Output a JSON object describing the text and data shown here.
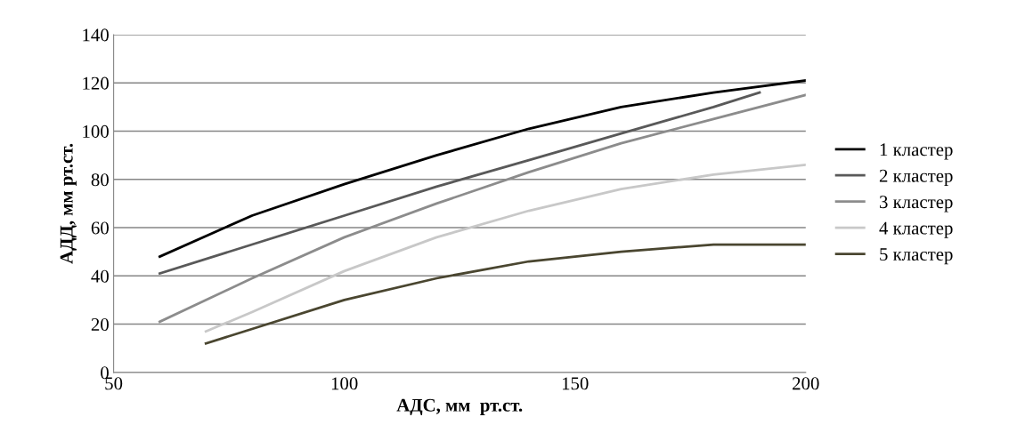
{
  "chart_data": {
    "type": "line",
    "xlabel": "АДС, мм  рт.ст.",
    "ylabel": "АДД, мм рт.ст.",
    "xlim": [
      50,
      200
    ],
    "xticks": [
      50,
      100,
      150,
      200
    ],
    "ylim": [
      0,
      140
    ],
    "yticks": [
      0,
      20,
      40,
      60,
      80,
      100,
      120,
      140
    ],
    "grid": "y",
    "legend": "right",
    "marker": "none",
    "line_style": "solid",
    "series": [
      {
        "name": "1 кластер",
        "color": "#000000",
        "x": [
          60,
          80,
          100,
          120,
          140,
          160,
          180,
          200
        ],
        "values": [
          48,
          65,
          78,
          90,
          101,
          110,
          116,
          121
        ]
      },
      {
        "name": "2 кластер",
        "color": "#595959",
        "x": [
          60,
          80,
          100,
          120,
          140,
          160,
          180,
          190
        ],
        "values": [
          41,
          53,
          65,
          77,
          88,
          99,
          110,
          116
        ]
      },
      {
        "name": "3 кластер",
        "color": "#8c8c8c",
        "x": [
          60,
          80,
          100,
          120,
          140,
          160,
          180,
          200
        ],
        "values": [
          21,
          39,
          56,
          70,
          83,
          95,
          105,
          115
        ]
      },
      {
        "name": "4 кластер",
        "color": "#c8c8c8",
        "x": [
          70,
          80,
          100,
          120,
          140,
          160,
          180,
          200
        ],
        "values": [
          17,
          25,
          42,
          56,
          67,
          76,
          82,
          86
        ]
      },
      {
        "name": "5 кластер",
        "color": "#4a4630",
        "x": [
          70,
          80,
          100,
          120,
          140,
          160,
          180,
          200
        ],
        "values": [
          12,
          18,
          30,
          39,
          46,
          50,
          53,
          53
        ]
      }
    ]
  }
}
